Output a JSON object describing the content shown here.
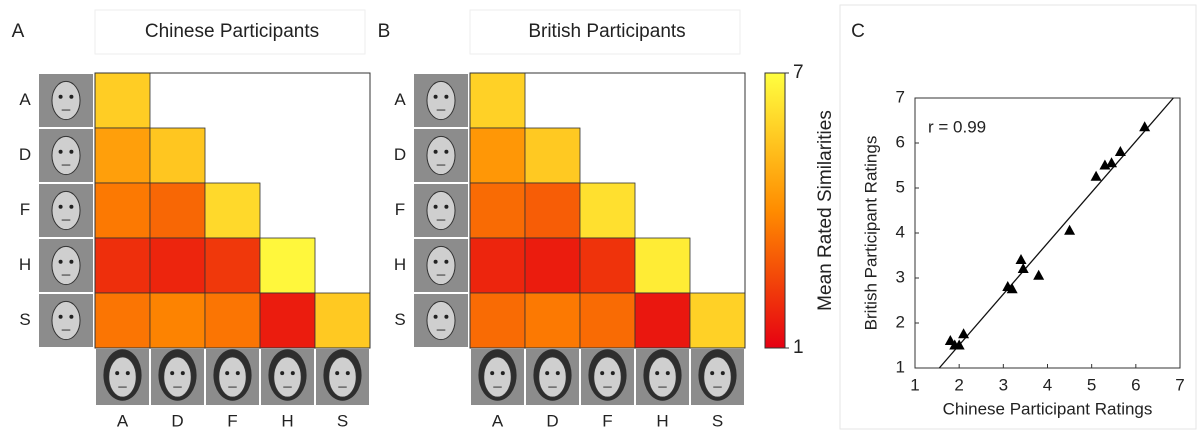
{
  "chart_data": [
    {
      "type": "heatmap",
      "panel": "A",
      "title": "Chinese Participants",
      "rows": [
        "A",
        "D",
        "F",
        "H",
        "S"
      ],
      "columns": [
        "A",
        "D",
        "F",
        "H",
        "S"
      ],
      "values": [
        [
          5.7,
          null,
          null,
          null,
          null
        ],
        [
          4.5,
          5.5,
          null,
          null,
          null
        ],
        [
          3.6,
          3.2,
          6.0,
          null,
          null
        ],
        [
          2.0,
          1.8,
          2.2,
          6.8,
          null
        ],
        [
          3.5,
          3.8,
          3.5,
          1.6,
          5.6
        ]
      ]
    },
    {
      "type": "heatmap",
      "panel": "B",
      "title": "British Participants",
      "rows": [
        "A",
        "D",
        "F",
        "H",
        "S"
      ],
      "columns": [
        "A",
        "D",
        "F",
        "H",
        "S"
      ],
      "values": [
        [
          5.8,
          null,
          null,
          null,
          null
        ],
        [
          4.3,
          5.6,
          null,
          null,
          null
        ],
        [
          3.3,
          3.0,
          6.2,
          null,
          null
        ],
        [
          1.8,
          1.6,
          2.1,
          6.5,
          null
        ],
        [
          3.3,
          3.6,
          3.3,
          1.5,
          5.8
        ]
      ],
      "colorbar": {
        "label": "Mean Rated Similarities",
        "lim": [
          1,
          7
        ],
        "ticks": [
          1,
          7
        ],
        "colormap": [
          "#e60012",
          "#ff8c00",
          "#ffff40"
        ]
      }
    },
    {
      "type": "scatter",
      "panel": "C",
      "xlabel": "Chinese Participant Ratings",
      "ylabel": "British Participant Ratings",
      "annotation": "r = 0.99",
      "color": "#000000",
      "x": [
        1.8,
        1.9,
        2.0,
        2.1,
        3.1,
        3.2,
        3.4,
        3.45,
        3.8,
        4.5,
        5.1,
        5.3,
        5.45,
        5.65,
        6.2
      ],
      "y": [
        1.6,
        1.5,
        1.5,
        1.75,
        2.8,
        2.75,
        3.4,
        3.2,
        3.05,
        4.05,
        5.25,
        5.5,
        5.55,
        5.8,
        6.35
      ],
      "xlim": [
        1,
        7
      ],
      "ylim": [
        1,
        7
      ],
      "xticks": [
        1,
        2,
        3,
        4,
        5,
        6,
        7
      ],
      "yticks": [
        1,
        2,
        3,
        4,
        5,
        6,
        7
      ],
      "fit_line": {
        "x": [
          1.55,
          6.85
        ],
        "y": [
          1,
          7
        ]
      }
    }
  ]
}
